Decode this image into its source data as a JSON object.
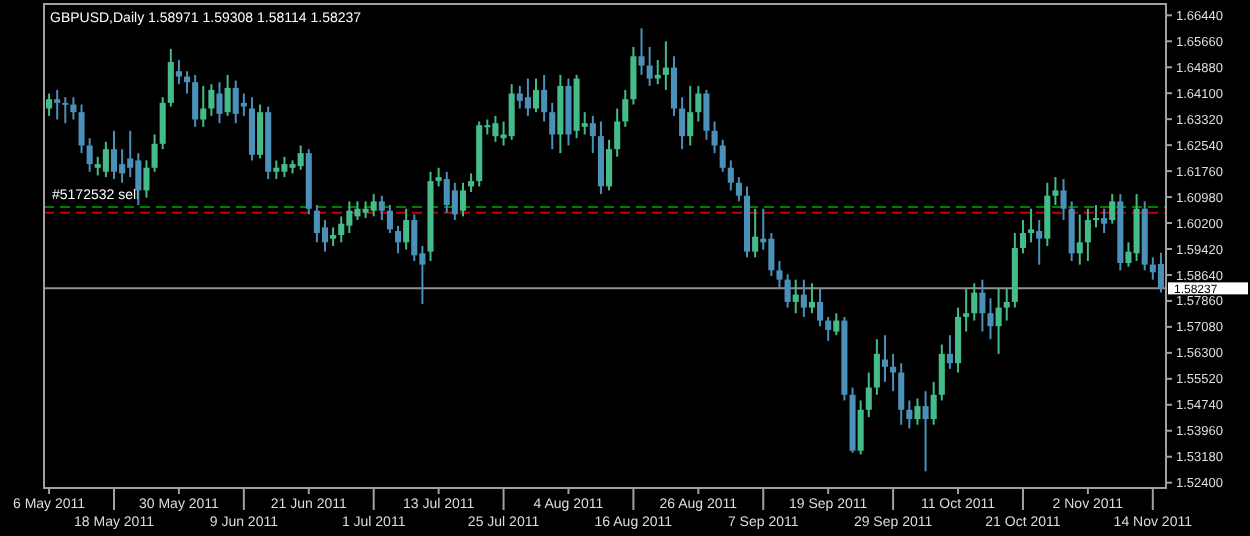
{
  "chart_data": {
    "type": "candlestick",
    "title": "GBPUSD,Daily  1.58971 1.59308 1.58114 1.58237",
    "categories": [
      "6 May 2011",
      null,
      null,
      null,
      null,
      null,
      null,
      null,
      "18 May 2011",
      null,
      null,
      null,
      null,
      null,
      null,
      null,
      "30 May 2011",
      null,
      null,
      null,
      null,
      null,
      null,
      null,
      "9 Jun 2011",
      null,
      null,
      null,
      null,
      null,
      null,
      null,
      "21 Jun 2011",
      null,
      null,
      null,
      null,
      null,
      null,
      null,
      "1 Jul 2011",
      null,
      null,
      null,
      null,
      null,
      null,
      null,
      "13 Jul 2011",
      null,
      null,
      null,
      null,
      null,
      null,
      null,
      "25 Jul 2011",
      null,
      null,
      null,
      null,
      null,
      null,
      null,
      "4 Aug 2011",
      null,
      null,
      null,
      null,
      null,
      null,
      null,
      "16 Aug 2011",
      null,
      null,
      null,
      null,
      null,
      null,
      null,
      "26 Aug 2011",
      null,
      null,
      null,
      null,
      null,
      null,
      null,
      "7 Sep 2011",
      null,
      null,
      null,
      null,
      null,
      null,
      null,
      "19 Sep 2011",
      null,
      null,
      null,
      null,
      null,
      null,
      null,
      "29 Sep 2011",
      null,
      null,
      null,
      null,
      null,
      null,
      null,
      "11 Oct 2011",
      null,
      null,
      null,
      null,
      null,
      null,
      null,
      "21 Oct 2011",
      null,
      null,
      null,
      null,
      null,
      null,
      null,
      "2 Nov 2011",
      null,
      null,
      null,
      null,
      null,
      null,
      null,
      "14 Nov 2011",
      null
    ],
    "ohlc": [
      [
        1.6364,
        1.6409,
        1.6342,
        1.6392
      ],
      [
        1.6392,
        1.642,
        1.6331,
        1.6381
      ],
      [
        1.6381,
        1.6398,
        1.632,
        1.6376
      ],
      [
        1.6376,
        1.6398,
        1.6331,
        1.6353
      ],
      [
        1.6353,
        1.6376,
        1.623,
        1.6253
      ],
      [
        1.6253,
        1.6275,
        1.6174,
        1.6197
      ],
      [
        1.6186,
        1.6219,
        1.6163,
        1.6197
      ],
      [
        1.6174,
        1.6264,
        1.6158,
        1.6242
      ],
      [
        1.6242,
        1.6297,
        1.6152,
        1.6174
      ],
      [
        1.6197,
        1.6242,
        1.6141,
        1.6169
      ],
      [
        1.6214,
        1.6297,
        1.6158,
        1.6186
      ],
      [
        1.6208,
        1.623,
        1.6074,
        1.6118
      ],
      [
        1.6118,
        1.6208,
        1.6096,
        1.6186
      ],
      [
        1.6186,
        1.6286,
        1.6174,
        1.6258
      ],
      [
        1.6258,
        1.6398,
        1.6242,
        1.6381
      ],
      [
        1.6381,
        1.6543,
        1.637,
        1.6504
      ],
      [
        1.6476,
        1.651,
        1.6437,
        1.646
      ],
      [
        1.646,
        1.6476,
        1.6409,
        1.6443
      ],
      [
        1.6443,
        1.6465,
        1.6309,
        1.6331
      ],
      [
        1.6331,
        1.6432,
        1.6309,
        1.6364
      ],
      [
        1.6364,
        1.6437,
        1.6342,
        1.642
      ],
      [
        1.6409,
        1.6443,
        1.632,
        1.6348
      ],
      [
        1.6353,
        1.6465,
        1.6342,
        1.6426
      ],
      [
        1.6426,
        1.6448,
        1.632,
        1.6348
      ],
      [
        1.6381,
        1.6409,
        1.6342,
        1.637
      ],
      [
        1.6364,
        1.6398,
        1.6208,
        1.6225
      ],
      [
        1.6225,
        1.6376,
        1.6214,
        1.6353
      ],
      [
        1.6353,
        1.637,
        1.6152,
        1.6174
      ],
      [
        1.6174,
        1.6208,
        1.6152,
        1.6186
      ],
      [
        1.6174,
        1.6219,
        1.6158,
        1.6197
      ],
      [
        1.6186,
        1.6208,
        1.6169,
        1.6197
      ],
      [
        1.6191,
        1.6253,
        1.618,
        1.623
      ],
      [
        1.623,
        1.6242,
        1.6046,
        1.6063
      ],
      [
        1.6057,
        1.6074,
        1.5962,
        1.599
      ],
      [
        1.6007,
        1.6029,
        1.5934,
        1.5962
      ],
      [
        1.5973,
        1.6007,
        1.5951,
        1.5984
      ],
      [
        1.5984,
        1.604,
        1.5962,
        1.6018
      ],
      [
        1.6012,
        1.6085,
        1.599,
        1.6057
      ],
      [
        1.604,
        1.6085,
        1.6029,
        1.6063
      ],
      [
        1.6051,
        1.6085,
        1.6035,
        1.6063
      ],
      [
        1.6057,
        1.6107,
        1.604,
        1.6085
      ],
      [
        1.6085,
        1.6102,
        1.6029,
        1.6057
      ],
      [
        1.6057,
        1.6074,
        1.599,
        1.6001
      ],
      [
        1.5996,
        1.6012,
        1.5929,
        1.5962
      ],
      [
        1.5962,
        1.6063,
        1.594,
        1.6029
      ],
      [
        1.6029,
        1.6046,
        1.5906,
        1.5923
      ],
      [
        1.5929,
        1.5951,
        1.5777,
        1.5895
      ],
      [
        1.5934,
        1.6174,
        1.5906,
        1.6146
      ],
      [
        1.6146,
        1.6186,
        1.613,
        1.6158
      ],
      [
        1.6152,
        1.6174,
        1.6051,
        1.6074
      ],
      [
        1.6118,
        1.6141,
        1.6029,
        1.6046
      ],
      [
        1.6057,
        1.6141,
        1.604,
        1.6118
      ],
      [
        1.613,
        1.6169,
        1.6113,
        1.6146
      ],
      [
        1.6146,
        1.6325,
        1.613,
        1.6314
      ],
      [
        1.6309,
        1.6331,
        1.6286,
        1.6314
      ],
      [
        1.6281,
        1.6342,
        1.6264,
        1.632
      ],
      [
        1.6275,
        1.6325,
        1.6253,
        1.6286
      ],
      [
        1.6281,
        1.6437,
        1.627,
        1.6409
      ],
      [
        1.6409,
        1.6432,
        1.6364,
        1.6387
      ],
      [
        1.6398,
        1.6454,
        1.6342,
        1.6364
      ],
      [
        1.6364,
        1.6454,
        1.6353,
        1.642
      ],
      [
        1.642,
        1.6465,
        1.6325,
        1.6353
      ],
      [
        1.6353,
        1.6381,
        1.6242,
        1.6286
      ],
      [
        1.6286,
        1.6465,
        1.623,
        1.6432
      ],
      [
        1.6432,
        1.6454,
        1.6253,
        1.6286
      ],
      [
        1.6297,
        1.6465,
        1.6275,
        1.6454
      ],
      [
        1.6309,
        1.6353,
        1.6286,
        1.632
      ],
      [
        1.632,
        1.6342,
        1.623,
        1.6281
      ],
      [
        1.6281,
        1.6325,
        1.6107,
        1.613
      ],
      [
        1.613,
        1.627,
        1.6118,
        1.6242
      ],
      [
        1.6242,
        1.6364,
        1.6219,
        1.6325
      ],
      [
        1.6325,
        1.642,
        1.6309,
        1.6392
      ],
      [
        1.6392,
        1.6549,
        1.6376,
        1.6521
      ],
      [
        1.6521,
        1.6605,
        1.6465,
        1.6493
      ],
      [
        1.6493,
        1.6549,
        1.6432,
        1.6454
      ],
      [
        1.6454,
        1.651,
        1.6437,
        1.6465
      ],
      [
        1.6465,
        1.6566,
        1.642,
        1.6487
      ],
      [
        1.6487,
        1.6521,
        1.6342,
        1.6364
      ],
      [
        1.6364,
        1.6398,
        1.6242,
        1.6281
      ],
      [
        1.6281,
        1.6432,
        1.6253,
        1.6353
      ],
      [
        1.6353,
        1.6432,
        1.6325,
        1.6409
      ],
      [
        1.6409,
        1.642,
        1.627,
        1.6297
      ],
      [
        1.6297,
        1.6325,
        1.623,
        1.6253
      ],
      [
        1.6253,
        1.627,
        1.6174,
        1.6186
      ],
      [
        1.6186,
        1.6208,
        1.6118,
        1.6141
      ],
      [
        1.6141,
        1.6158,
        1.6085,
        1.6102
      ],
      [
        1.6102,
        1.613,
        1.5917,
        1.5934
      ],
      [
        1.5934,
        1.6063,
        1.5917,
        1.5979
      ],
      [
        1.5973,
        1.6063,
        1.594,
        1.5962
      ],
      [
        1.5973,
        1.599,
        1.5861,
        1.5878
      ],
      [
        1.5878,
        1.5906,
        1.5822,
        1.585
      ],
      [
        1.585,
        1.5866,
        1.5766,
        1.5783
      ],
      [
        1.5783,
        1.585,
        1.5749,
        1.5805
      ],
      [
        1.5805,
        1.585,
        1.5738,
        1.5766
      ],
      [
        1.5766,
        1.5839,
        1.5749,
        1.5783
      ],
      [
        1.5783,
        1.5822,
        1.571,
        1.5727
      ],
      [
        1.5727,
        1.5738,
        1.5666,
        1.5699
      ],
      [
        1.5694,
        1.5749,
        1.5683,
        1.5727
      ],
      [
        1.5727,
        1.5738,
        1.5487,
        1.5504
      ],
      [
        1.5504,
        1.5526,
        1.533,
        1.5336
      ],
      [
        1.5336,
        1.5487,
        1.5325,
        1.5459
      ],
      [
        1.5459,
        1.5571,
        1.5437,
        1.5526
      ],
      [
        1.5526,
        1.5671,
        1.5504,
        1.5627
      ],
      [
        1.561,
        1.5683,
        1.5543,
        1.5588
      ],
      [
        1.5588,
        1.5627,
        1.5515,
        1.5571
      ],
      [
        1.5571,
        1.5599,
        1.5414,
        1.5459
      ],
      [
        1.5459,
        1.5487,
        1.5403,
        1.5431
      ],
      [
        1.5431,
        1.5493,
        1.5414,
        1.547
      ],
      [
        1.547,
        1.5515,
        1.5274,
        1.5431
      ],
      [
        1.5431,
        1.5543,
        1.5414,
        1.5504
      ],
      [
        1.5504,
        1.5655,
        1.5487,
        1.5627
      ],
      [
        1.5627,
        1.5683,
        1.5582,
        1.5599
      ],
      [
        1.5599,
        1.5766,
        1.5571,
        1.5738
      ],
      [
        1.5738,
        1.5822,
        1.5694,
        1.5749
      ],
      [
        1.5749,
        1.5839,
        1.5727,
        1.5811
      ],
      [
        1.5811,
        1.585,
        1.5694,
        1.5749
      ],
      [
        1.5749,
        1.5794,
        1.5671,
        1.571
      ],
      [
        1.571,
        1.5822,
        1.5627,
        1.5766
      ],
      [
        1.5766,
        1.5822,
        1.5727,
        1.5783
      ],
      [
        1.5783,
        1.599,
        1.5766,
        1.5945
      ],
      [
        1.5945,
        1.6029,
        1.5929,
        1.599
      ],
      [
        1.599,
        1.6063,
        1.5962,
        1.6001
      ],
      [
        1.5996,
        1.6029,
        1.5895,
        1.5973
      ],
      [
        1.5973,
        1.6141,
        1.5951,
        1.6102
      ],
      [
        1.6102,
        1.6158,
        1.6074,
        1.6118
      ],
      [
        1.6118,
        1.6152,
        1.6029,
        1.6063
      ],
      [
        1.6063,
        1.6085,
        1.5906,
        1.5929
      ],
      [
        1.5929,
        1.6046,
        1.5895,
        1.5962
      ],
      [
        1.5962,
        1.6063,
        1.5906,
        1.6029
      ],
      [
        1.6029,
        1.6074,
        1.6007,
        1.6035
      ],
      [
        1.6035,
        1.6063,
        1.599,
        1.6018
      ],
      [
        1.6029,
        1.6107,
        1.6018,
        1.6085
      ],
      [
        1.6085,
        1.6107,
        1.5878,
        1.59
      ],
      [
        1.59,
        1.5962,
        1.5889,
        1.5934
      ],
      [
        1.5929,
        1.6107,
        1.5906,
        1.6063
      ],
      [
        1.6063,
        1.6085,
        1.5878,
        1.5895
      ],
      [
        1.5895,
        1.5917,
        1.585,
        1.5872
      ],
      [
        1.58971,
        1.59308,
        1.58114,
        1.58237
      ]
    ],
    "colors": [
      "#44bb88",
      "#4a90b8",
      "#4a90b8",
      "#4a90b8",
      "#4a90b8",
      "#4a90b8",
      "#44bb88",
      "#44bb88",
      "#4a90b8",
      "#4a90b8",
      "#4a90b8",
      "#4a90b8",
      "#44bb88",
      "#44bb88",
      "#44bb88",
      "#44bb88",
      "#4a90b8",
      "#4a90b8",
      "#4a90b8",
      "#44bb88",
      "#44bb88",
      "#4a90b8",
      "#44bb88",
      "#4a90b8",
      "#4a90b8",
      "#4a90b8",
      "#44bb88",
      "#4a90b8",
      "#44bb88",
      "#44bb88",
      "#44bb88",
      "#44bb88",
      "#4a90b8",
      "#4a90b8",
      "#4a90b8",
      "#44bb88",
      "#44bb88",
      "#44bb88",
      "#44bb88",
      "#44bb88",
      "#44bb88",
      "#4a90b8",
      "#4a90b8",
      "#4a90b8",
      "#44bb88",
      "#4a90b8",
      "#4a90b8",
      "#44bb88",
      "#44bb88",
      "#4a90b8",
      "#4a90b8",
      "#44bb88",
      "#44bb88",
      "#44bb88",
      "#44bb88",
      "#44bb88",
      "#44bb88",
      "#44bb88",
      "#4a90b8",
      "#4a90b8",
      "#44bb88",
      "#4a90b8",
      "#4a90b8",
      "#44bb88",
      "#4a90b8",
      "#44bb88",
      "#44bb88",
      "#4a90b8",
      "#4a90b8",
      "#44bb88",
      "#44bb88",
      "#44bb88",
      "#44bb88",
      "#4a90b8",
      "#4a90b8",
      "#44bb88",
      "#44bb88",
      "#4a90b8",
      "#4a90b8",
      "#44bb88",
      "#44bb88",
      "#4a90b8",
      "#4a90b8",
      "#4a90b8",
      "#4a90b8",
      "#4a90b8",
      "#4a90b8",
      "#44bb88",
      "#4a90b8",
      "#4a90b8",
      "#4a90b8",
      "#4a90b8",
      "#44bb88",
      "#4a90b8",
      "#44bb88",
      "#4a90b8",
      "#4a90b8",
      "#44bb88",
      "#4a90b8",
      "#4a90b8",
      "#44bb88",
      "#44bb88",
      "#44bb88",
      "#4a90b8",
      "#4a90b8",
      "#4a90b8",
      "#4a90b8",
      "#44bb88",
      "#4a90b8",
      "#44bb88",
      "#44bb88",
      "#4a90b8",
      "#44bb88",
      "#44bb88",
      "#44bb88",
      "#4a90b8",
      "#4a90b8",
      "#44bb88",
      "#44bb88",
      "#44bb88",
      "#44bb88",
      "#44bb88",
      "#4a90b8",
      "#44bb88",
      "#44bb88",
      "#4a90b8",
      "#4a90b8",
      "#44bb88",
      "#44bb88",
      "#44bb88",
      "#4a90b8",
      "#44bb88",
      "#4a90b8",
      "#44bb88",
      "#44bb88",
      "#4a90b8",
      "#4a90b8",
      "#4a90b8"
    ],
    "ylim": [
      1.5224,
      1.6678
    ],
    "yticks": [
      {
        "value": 1.524,
        "label": "1.52400"
      },
      {
        "value": 1.5318,
        "label": "1.53180"
      },
      {
        "value": 1.5396,
        "label": "1.53960"
      },
      {
        "value": 1.5474,
        "label": "1.54740"
      },
      {
        "value": 1.5552,
        "label": "1.55520"
      },
      {
        "value": 1.563,
        "label": "1.56300"
      },
      {
        "value": 1.5708,
        "label": "1.57080"
      },
      {
        "value": 1.5786,
        "label": "1.57860"
      },
      {
        "value": 1.5864,
        "label": "1.58640"
      },
      {
        "value": 1.5942,
        "label": "1.59420"
      },
      {
        "value": 1.602,
        "label": "1.60200"
      },
      {
        "value": 1.6098,
        "label": "1.60980"
      },
      {
        "value": 1.6176,
        "label": "1.61760"
      },
      {
        "value": 1.6254,
        "label": "1.62540"
      },
      {
        "value": 1.6332,
        "label": "1.63320"
      },
      {
        "value": 1.641,
        "label": "1.64100"
      },
      {
        "value": 1.6488,
        "label": "1.64880"
      },
      {
        "value": 1.6566,
        "label": "1.65660"
      },
      {
        "value": 1.6644,
        "label": "1.66440"
      }
    ],
    "ref_lines": [
      {
        "axis": "y",
        "value": 1.6068,
        "label": "#5172532 sell",
        "color": "#008000",
        "line_style": "dashed"
      },
      {
        "axis": "y",
        "value": 1.6051,
        "color": "#c00000",
        "line_style": "dashed"
      },
      {
        "axis": "y",
        "value": 1.58237,
        "label": "1.58237",
        "color": "#909090",
        "line_style": "solid"
      }
    ]
  }
}
